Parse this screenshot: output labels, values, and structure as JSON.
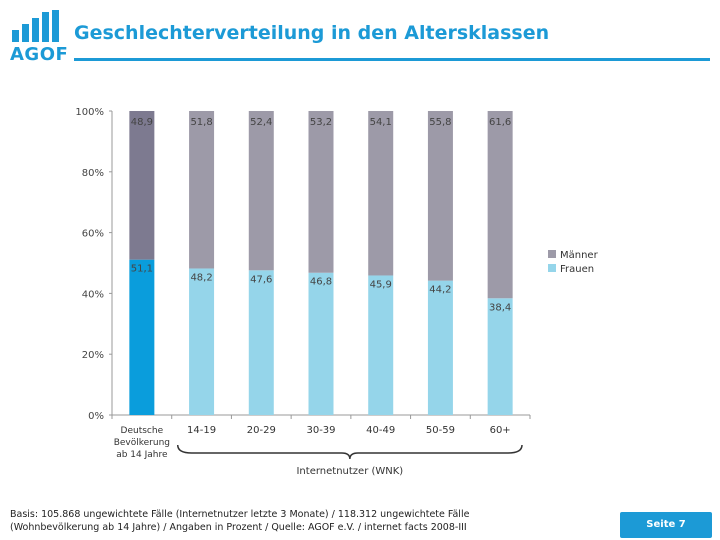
{
  "header": {
    "logo_text": "AGOF",
    "title": "Geschlechterverteilung in den Altersklassen"
  },
  "chart_data": {
    "type": "bar",
    "stacked": true,
    "categories": [
      "Deutsche Bevölkerung ab 14 Jahre",
      "14-19",
      "20-29",
      "30-39",
      "40-49",
      "50-59",
      "60+"
    ],
    "category_lines": [
      [
        "Deutsche",
        "Bevölkerung",
        "ab 14 Jahre"
      ],
      [
        "14-19"
      ],
      [
        "20-29"
      ],
      [
        "30-39"
      ],
      [
        "40-49"
      ],
      [
        "50-59"
      ],
      [
        "60+"
      ]
    ],
    "series": [
      {
        "name": "Frauen",
        "values": [
          51.1,
          48.2,
          47.6,
          46.8,
          45.9,
          44.2,
          38.4
        ],
        "labels": [
          "51,1",
          "48,2",
          "47,6",
          "46,8",
          "45,9",
          "44,2",
          "38,4"
        ],
        "color": "#95d5ea",
        "first_color": "#0a9ddc"
      },
      {
        "name": "Männer",
        "values": [
          48.9,
          51.8,
          52.4,
          53.2,
          54.1,
          55.8,
          61.6
        ],
        "labels": [
          "48,9",
          "51,8",
          "52,4",
          "53,2",
          "54,1",
          "55,8",
          "61,6"
        ],
        "color": "#9d9aa8",
        "first_color": "#7d7a90"
      }
    ],
    "legend_order": [
      "Männer",
      "Frauen"
    ],
    "ylim": [
      0,
      100
    ],
    "yticks": [
      0,
      20,
      40,
      60,
      80,
      100
    ],
    "ytick_labels": [
      "0%",
      "20%",
      "40%",
      "60%",
      "80%",
      "100%"
    ],
    "group_label": "Internetnutzer (WNK)",
    "legend_position": "right"
  },
  "footer": {
    "note_line1": "Basis: 105.868 ungewichtete Fälle (Internetnutzer letzte 3 Monate) / 118.312 ungewichtete Fälle",
    "note_line2": "(Wohnbevölkerung ab 14 Jahre) / Angaben in Prozent / Quelle: AGOF e.V. / internet facts 2008-III",
    "page_label": "Seite 7"
  }
}
